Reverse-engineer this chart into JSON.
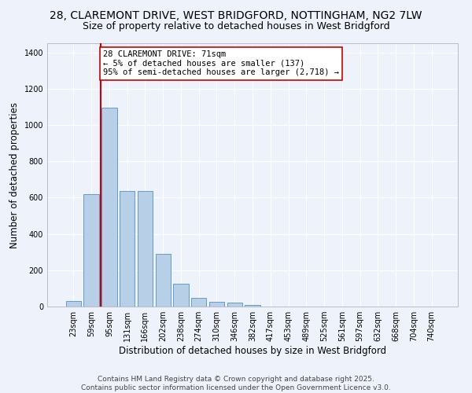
{
  "title_line1": "28, CLAREMONT DRIVE, WEST BRIDGFORD, NOTTINGHAM, NG2 7LW",
  "title_line2": "Size of property relative to detached houses in West Bridgford",
  "xlabel": "Distribution of detached houses by size in West Bridgford",
  "ylabel": "Number of detached properties",
  "categories": [
    "23sqm",
    "59sqm",
    "95sqm",
    "131sqm",
    "166sqm",
    "202sqm",
    "238sqm",
    "274sqm",
    "310sqm",
    "346sqm",
    "382sqm",
    "417sqm",
    "453sqm",
    "489sqm",
    "525sqm",
    "561sqm",
    "597sqm",
    "632sqm",
    "668sqm",
    "704sqm",
    "740sqm"
  ],
  "values": [
    30,
    620,
    1095,
    635,
    635,
    290,
    125,
    48,
    25,
    22,
    10,
    0,
    0,
    0,
    0,
    0,
    0,
    0,
    0,
    0,
    0
  ],
  "bar_color": "#b8cfe8",
  "bar_edge_color": "#6699cc",
  "vline_color": "#cc0000",
  "vline_x_index": 1.5,
  "annotation_text": "28 CLAREMONT DRIVE: 71sqm\n← 5% of detached houses are smaller (137)\n95% of semi-detached houses are larger (2,718) →",
  "annotation_box_color": "#ffffff",
  "annotation_box_edge": "#cc0000",
  "ylim": [
    0,
    1450
  ],
  "yticks": [
    0,
    200,
    400,
    600,
    800,
    1000,
    1200,
    1400
  ],
  "background_color": "#eef2fb",
  "grid_color": "#ffffff",
  "footer_line1": "Contains HM Land Registry data © Crown copyright and database right 2025.",
  "footer_line2": "Contains public sector information licensed under the Open Government Licence v3.0.",
  "title_fontsize": 10,
  "subtitle_fontsize": 9,
  "axis_label_fontsize": 8.5,
  "tick_fontsize": 7,
  "annotation_fontsize": 7.5,
  "footer_fontsize": 6.5
}
